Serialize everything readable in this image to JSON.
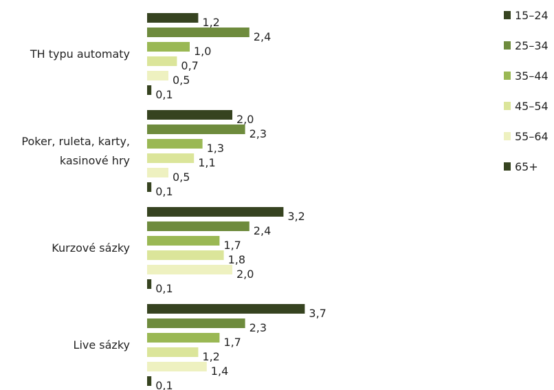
{
  "chart_data": {
    "type": "bar",
    "orientation": "horizontal",
    "title": "",
    "xlabel": "",
    "ylabel": "",
    "xlim": [
      0,
      4
    ],
    "grid": false,
    "legend_position": "top-right",
    "categories": [
      {
        "label_lines": [
          "TH typu automaty"
        ]
      },
      {
        "label_lines": [
          "Poker, ruleta, karty,",
          "kasinové hry"
        ]
      },
      {
        "label_lines": [
          "Kurzové sázky"
        ]
      },
      {
        "label_lines": [
          "Live sázky"
        ]
      }
    ],
    "series": [
      {
        "name": "15–24",
        "color": "#364320",
        "values": [
          1.2,
          2.0,
          3.2,
          3.7
        ],
        "labels": [
          "1,2",
          "2,0",
          "3,2",
          "3,7"
        ]
      },
      {
        "name": "25–34",
        "color": "#6e8b3d",
        "values": [
          2.4,
          2.3,
          2.4,
          2.3
        ],
        "labels": [
          "2,4",
          "2,3",
          "2,4",
          "2,3"
        ]
      },
      {
        "name": "35–44",
        "color": "#9ab854",
        "values": [
          1.0,
          1.3,
          1.7,
          1.7
        ],
        "labels": [
          "1,0",
          "1,3",
          "1,7",
          "1,7"
        ]
      },
      {
        "name": "45–54",
        "color": "#dbe59a",
        "values": [
          0.7,
          1.1,
          1.8,
          1.2
        ],
        "labels": [
          "0,7",
          "1,1",
          "1,8",
          "1,2"
        ]
      },
      {
        "name": "55–64",
        "color": "#eef1c0",
        "values": [
          0.5,
          0.5,
          2.0,
          1.4
        ],
        "labels": [
          "0,5",
          "0,5",
          "2,0",
          "1,4"
        ]
      },
      {
        "name": "65+",
        "color": "#364320",
        "values": [
          0.1,
          0.1,
          0.1,
          0.1
        ],
        "labels": [
          "0,1",
          "0,1",
          "0,1",
          "0,1"
        ]
      }
    ]
  }
}
